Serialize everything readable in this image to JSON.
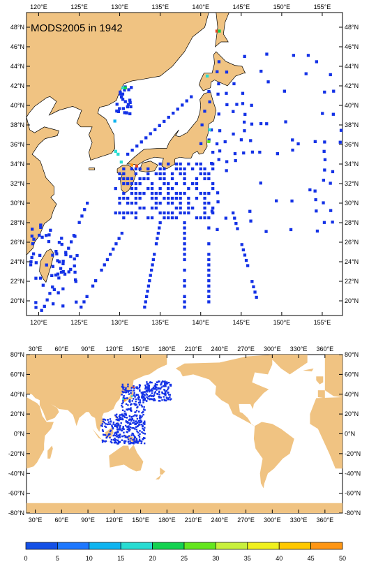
{
  "top_map": {
    "title": "MODS2005 in 1942",
    "lon_ticks": [
      "120°E",
      "125°E",
      "130°E",
      "135°E",
      "140°E",
      "145°E",
      "150°E",
      "155°E"
    ],
    "lat_ticks": [
      "48°N",
      "46°N",
      "44°N",
      "42°N",
      "40°N",
      "38°N",
      "36°N",
      "34°N",
      "32°N",
      "30°N",
      "28°N",
      "26°N",
      "24°N",
      "22°N",
      "20°N"
    ],
    "extent": {
      "lon": [
        118.5,
        157.5
      ],
      "lat": [
        18.5,
        49.5
      ]
    }
  },
  "bottom_map": {
    "lon_ticks": [
      "30°E",
      "60°E",
      "90°E",
      "120°E",
      "150°E",
      "180°E",
      "210°E",
      "240°E",
      "270°E",
      "300°E",
      "330°E",
      "360°E"
    ],
    "lat_ticks": [
      "80°N",
      "60°N",
      "40°N",
      "20°N",
      "0°N",
      "-20°N",
      "-40°N",
      "-60°N",
      "-80°N"
    ],
    "extent": {
      "lon": [
        20,
        380
      ],
      "lat": [
        -80,
        80
      ]
    }
  },
  "colorbar": {
    "labels": [
      "0",
      "5",
      "10",
      "15",
      "20",
      "25",
      "30",
      "35",
      "40",
      "45",
      "50"
    ],
    "colors": [
      "#1450e6",
      "#1e78ff",
      "#0fb4f0",
      "#28dcd2",
      "#14d250",
      "#64e61e",
      "#c8f03c",
      "#f0f01e",
      "#ffc800",
      "#ff9614",
      "#e6461e"
    ]
  },
  "colors": {
    "land": "#f0c382",
    "sea": "#ffffff",
    "obs": "#1432e6"
  }
}
